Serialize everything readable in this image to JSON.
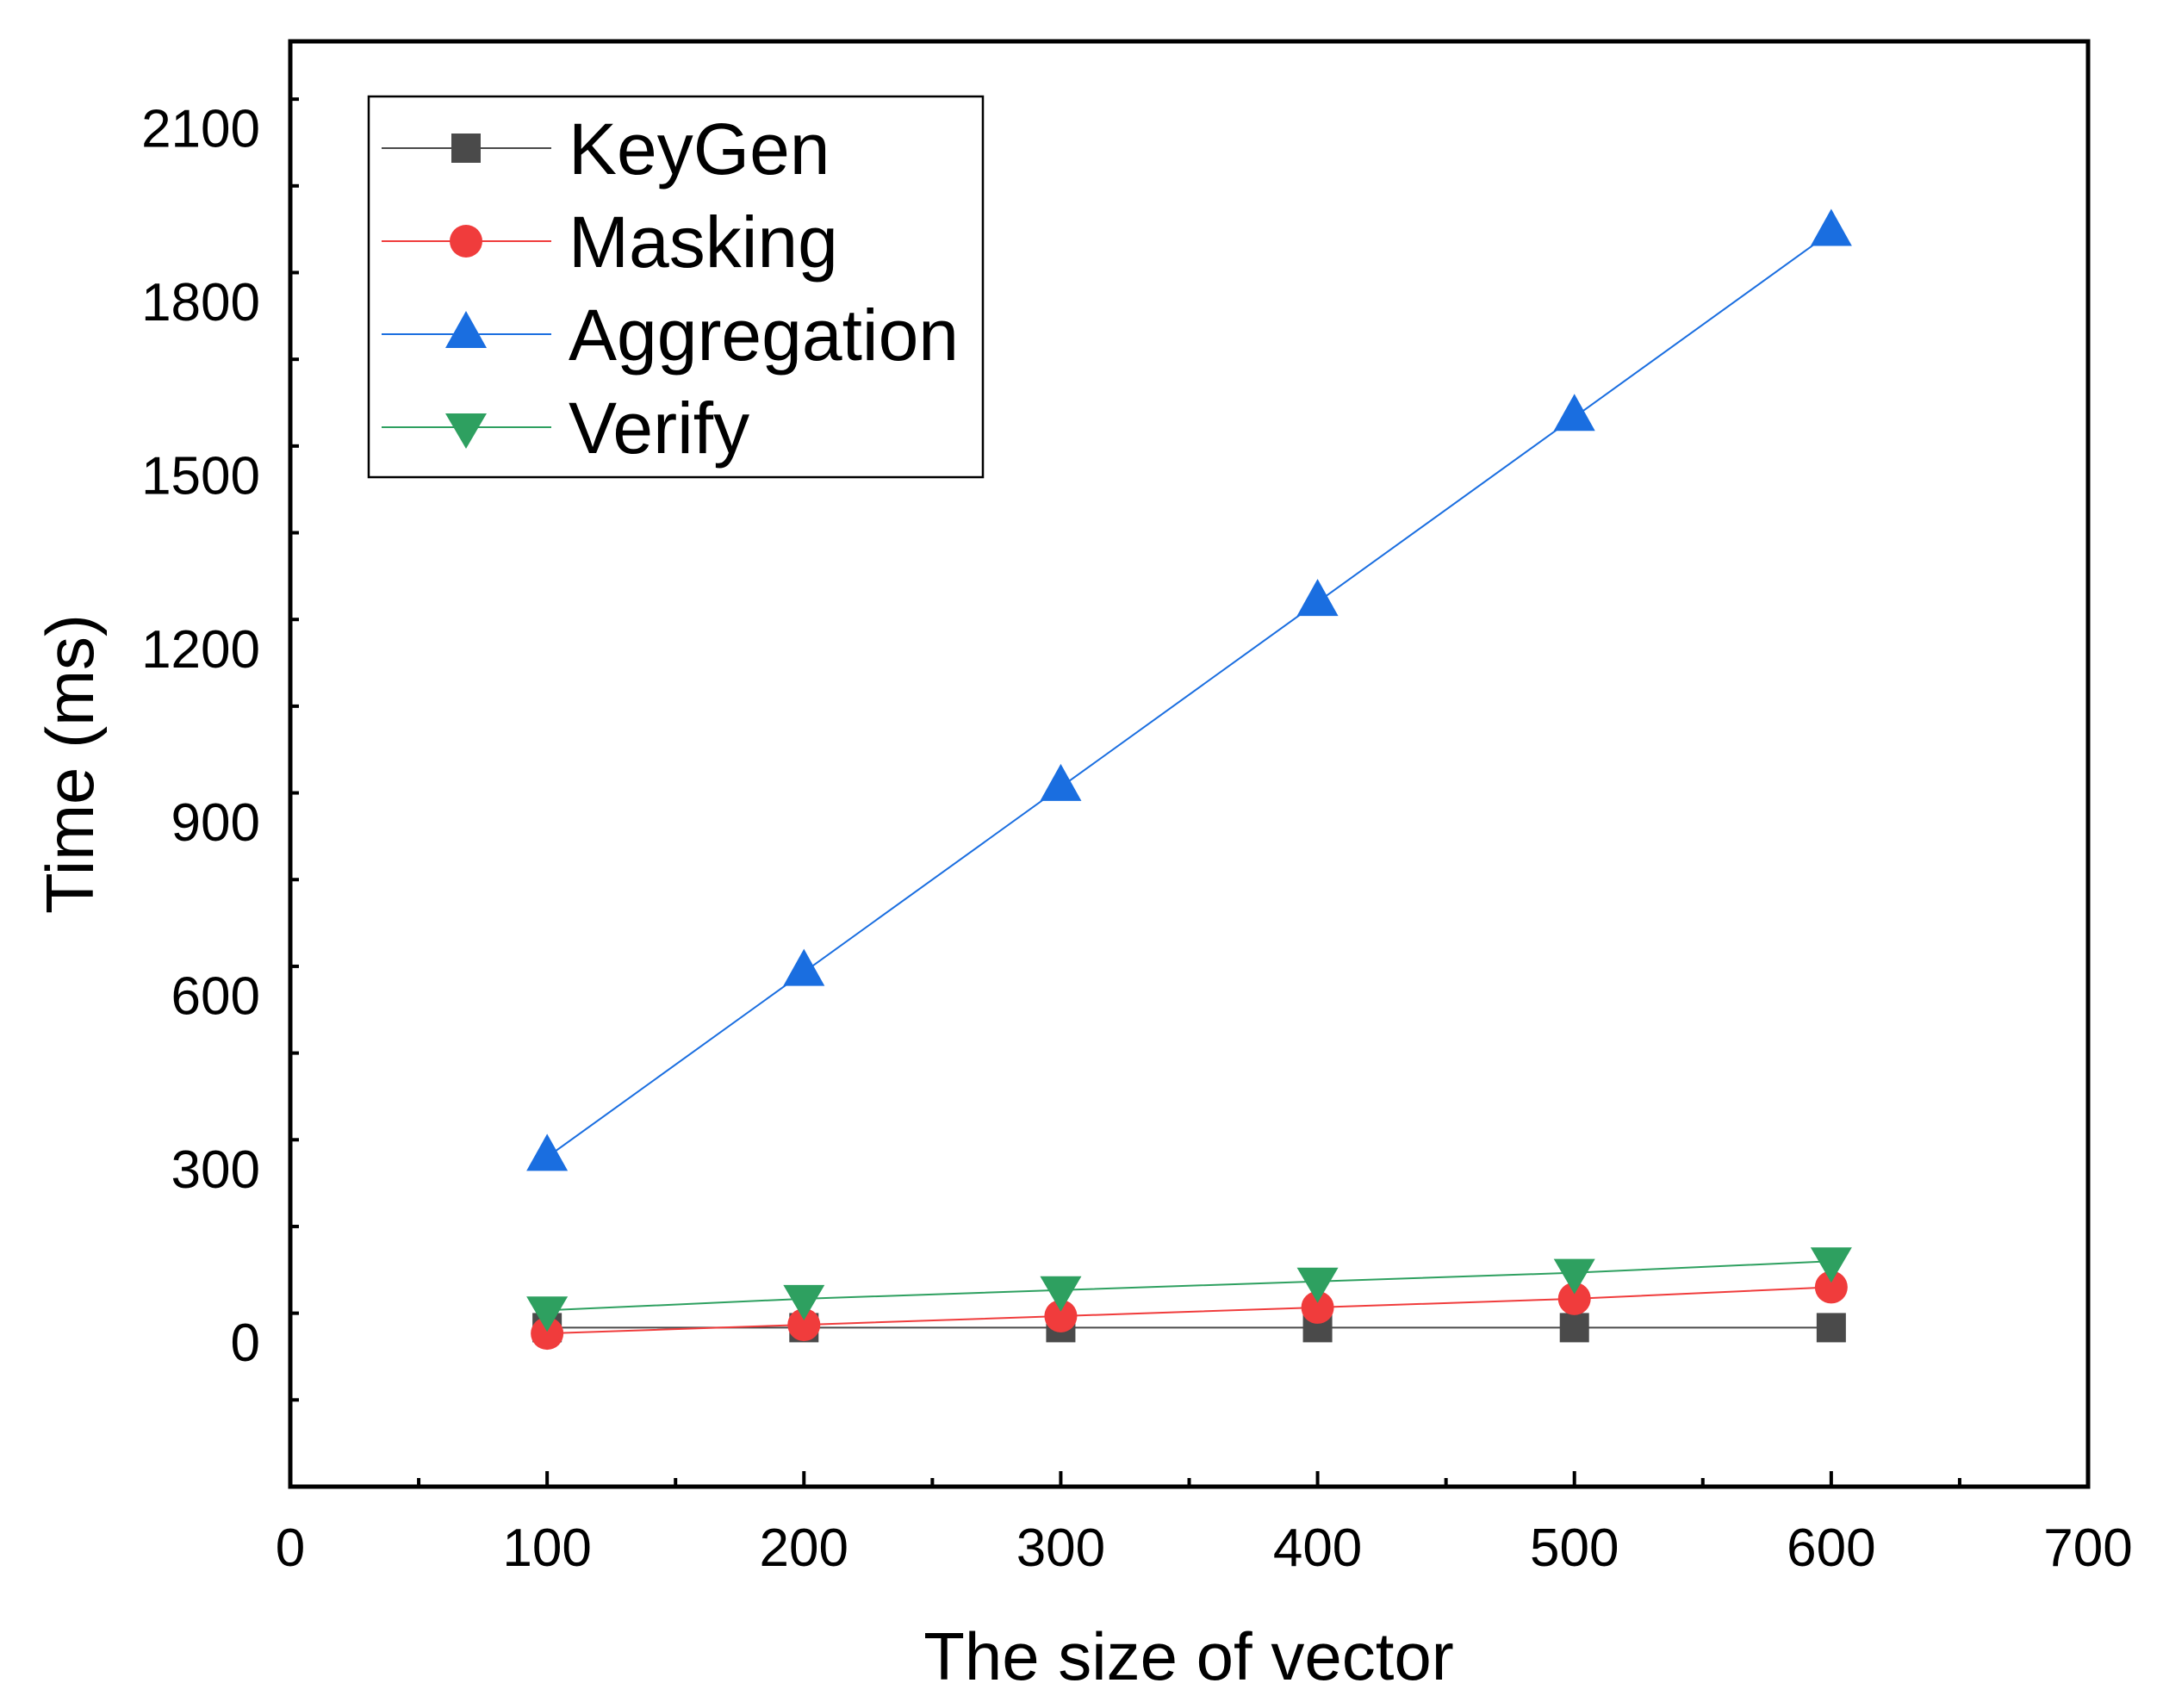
{
  "chart_data": {
    "type": "line",
    "title": "",
    "xlabel": "The  size of vector",
    "ylabel": "Time (ms)",
    "xlim": [
      0,
      700
    ],
    "ylim": [
      -250,
      2250
    ],
    "xticks": [
      0,
      100,
      200,
      300,
      400,
      500,
      600,
      700
    ],
    "yticks": [
      0,
      300,
      600,
      900,
      1200,
      1500,
      1800,
      2100
    ],
    "grid": false,
    "legend_position": "top-left",
    "x": [
      100,
      200,
      300,
      400,
      500,
      600
    ],
    "series": [
      {
        "name": "KeyGen",
        "marker": "square",
        "color": "#4a4a4a",
        "values": [
          25,
          25,
          25,
          25,
          25,
          25
        ]
      },
      {
        "name": "Masking",
        "marker": "circle",
        "color": "#f03c3c",
        "values": [
          15,
          30,
          45,
          60,
          75,
          95
        ]
      },
      {
        "name": "Aggregation",
        "marker": "triangle-up",
        "color": "#1a6ee0",
        "values": [
          320,
          640,
          960,
          1280,
          1600,
          1920
        ]
      },
      {
        "name": "Verify",
        "marker": "triangle-down",
        "color": "#2ea060",
        "values": [
          55,
          75,
          90,
          105,
          120,
          140
        ]
      }
    ]
  }
}
